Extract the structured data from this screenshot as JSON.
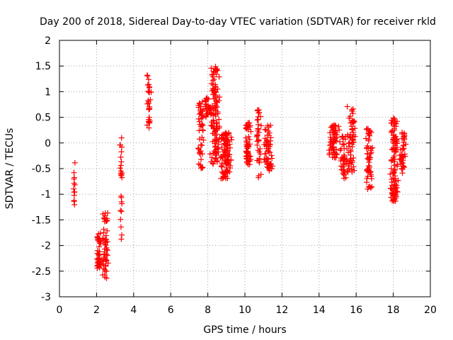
{
  "chart_data": {
    "type": "scatter",
    "title": "Day 200 of 2018, Sidereal Day-to-day VTEC variation (SDTVAR) for receiver rkld",
    "xlabel": "GPS time / hours",
    "ylabel": "SDTVAR / TECUs",
    "xlim": [
      0,
      20
    ],
    "ylim": [
      -3,
      2
    ],
    "grid": true,
    "marker": "+",
    "color": "#ff0000",
    "xticks": [
      0,
      2,
      4,
      6,
      8,
      10,
      12,
      14,
      16,
      18,
      20
    ],
    "yticks": [
      -3,
      -2.5,
      -2,
      -1.5,
      -1,
      -0.5,
      0,
      0.5,
      1,
      1.5,
      2
    ],
    "xtick_labels": [
      "0",
      "2",
      "4",
      "6",
      "8",
      "10",
      "12",
      "14",
      "16",
      "18",
      "20"
    ],
    "ytick_labels": [
      "-3",
      "-2.5",
      "-2",
      "-1.5",
      "-1",
      "-0.5",
      "0",
      "0.5",
      "1",
      "1.5",
      "2"
    ],
    "clusters": [
      {
        "x": [
          0.75,
          0.85
        ],
        "y": [
          -1.3,
          -0.35
        ],
        "n": 14
      },
      {
        "x": [
          2.0,
          2.25
        ],
        "y": [
          -2.45,
          -1.75
        ],
        "n": 45
      },
      {
        "x": [
          2.3,
          2.65
        ],
        "y": [
          -2.65,
          -1.35
        ],
        "n": 55
      },
      {
        "x": [
          3.25,
          3.4
        ],
        "y": [
          -2.0,
          0.1
        ],
        "n": 25
      },
      {
        "x": [
          4.7,
          4.95
        ],
        "y": [
          0.2,
          1.35
        ],
        "n": 30
      },
      {
        "x": [
          7.45,
          7.8
        ],
        "y": [
          -0.5,
          0.85
        ],
        "n": 45
      },
      {
        "x": [
          7.8,
          8.2
        ],
        "y": [
          0.5,
          0.95
        ],
        "n": 30
      },
      {
        "x": [
          8.1,
          8.7
        ],
        "y": [
          -0.45,
          1.5
        ],
        "n": 120
      },
      {
        "x": [
          8.6,
          9.3
        ],
        "y": [
          -0.7,
          0.2
        ],
        "n": 110
      },
      {
        "x": [
          10.0,
          10.35
        ],
        "y": [
          -0.45,
          0.4
        ],
        "n": 55
      },
      {
        "x": [
          10.6,
          10.9
        ],
        "y": [
          -0.7,
          0.65
        ],
        "n": 35
      },
      {
        "x": [
          11.0,
          11.5
        ],
        "y": [
          -0.55,
          0.35
        ],
        "n": 55
      },
      {
        "x": [
          14.5,
          15.1
        ],
        "y": [
          -0.3,
          0.35
        ],
        "n": 60
      },
      {
        "x": [
          15.1,
          15.6
        ],
        "y": [
          -0.7,
          0.15
        ],
        "n": 45
      },
      {
        "x": [
          15.5,
          16.0
        ],
        "y": [
          -0.6,
          0.72
        ],
        "n": 60
      },
      {
        "x": [
          16.5,
          16.9
        ],
        "y": [
          -0.9,
          0.3
        ],
        "n": 55
      },
      {
        "x": [
          17.8,
          18.3
        ],
        "y": [
          -1.15,
          0.5
        ],
        "n": 110
      },
      {
        "x": [
          18.3,
          18.7
        ],
        "y": [
          -0.6,
          0.25
        ],
        "n": 40
      }
    ]
  }
}
